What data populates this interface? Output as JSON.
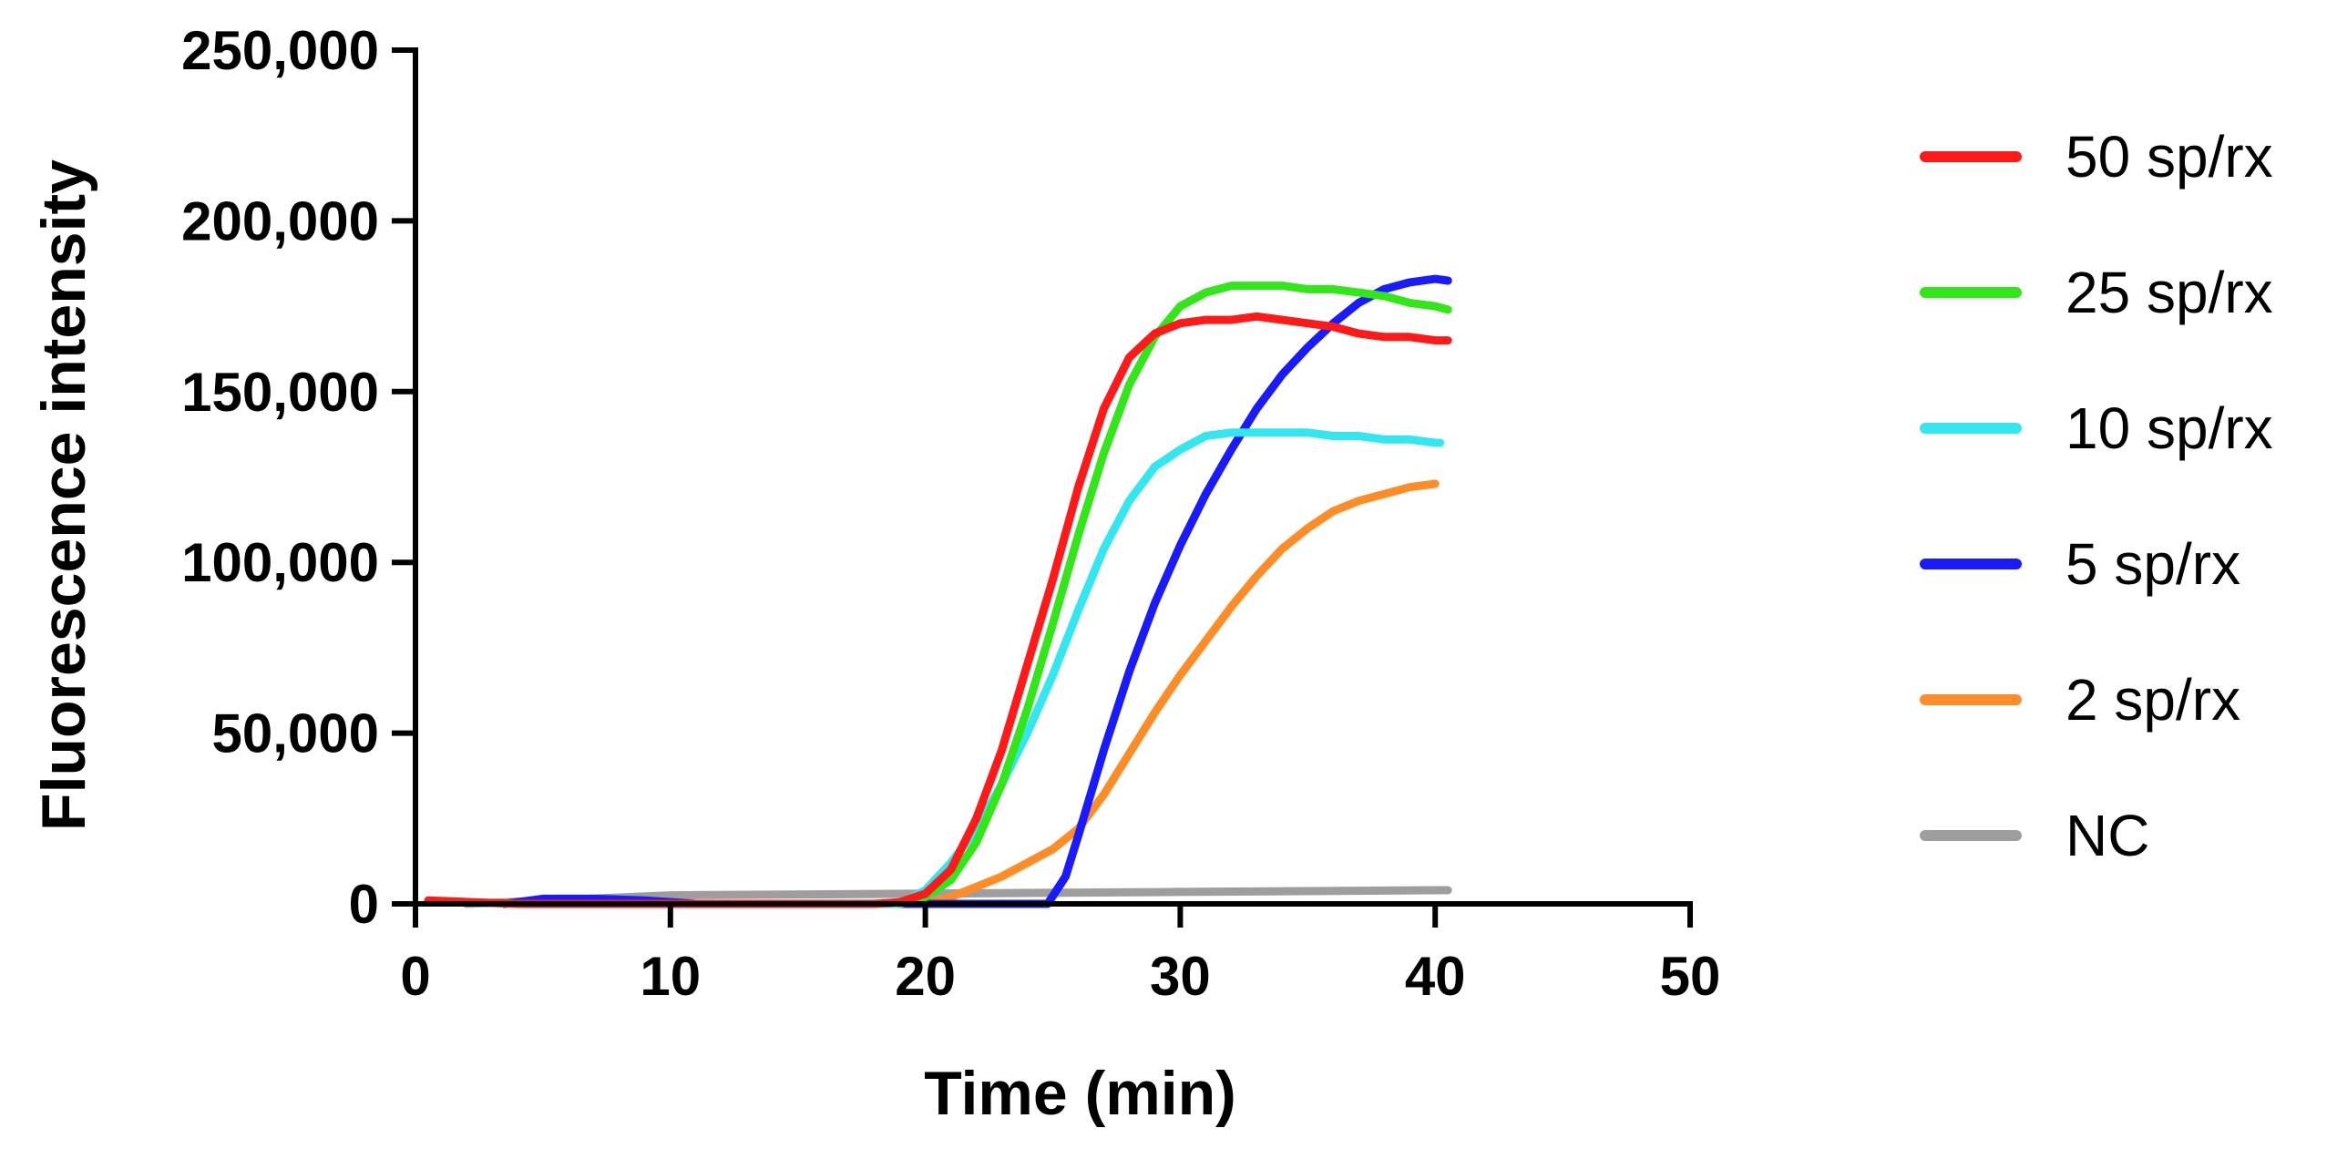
{
  "chart_data": {
    "type": "line",
    "title": "",
    "xlabel": "Time (min)",
    "ylabel": "Fluorescence intensity",
    "xlim": [
      0,
      50
    ],
    "ylim": [
      0,
      250000
    ],
    "xticks": [
      0,
      10,
      20,
      30,
      40,
      50
    ],
    "yticks": [
      0,
      50000,
      100000,
      150000,
      200000,
      250000
    ],
    "xtick_labels": [
      "0",
      "10",
      "20",
      "30",
      "40",
      "50"
    ],
    "ytick_labels": [
      "0",
      "50,000",
      "100,000",
      "150,000",
      "200,000",
      "250,000"
    ],
    "grid": false,
    "legend_position": "right",
    "series": [
      {
        "name": "50 sp/rx",
        "color": "#ff1a1a",
        "x": [
          0.5,
          4,
          8,
          12,
          16,
          18,
          19,
          20,
          21,
          22,
          23,
          24,
          25,
          26,
          27,
          28,
          29,
          30,
          31,
          32,
          33,
          34,
          35,
          36,
          37,
          38,
          39,
          40,
          40.5
        ],
        "y": [
          1000,
          0,
          0,
          0,
          0,
          0,
          500,
          3000,
          10000,
          25000,
          45000,
          70000,
          95000,
          122000,
          145000,
          160000,
          167000,
          170000,
          171000,
          171000,
          172000,
          171000,
          170000,
          169000,
          167000,
          166000,
          166000,
          165000,
          165000
        ]
      },
      {
        "name": "25 sp/rx",
        "color": "#33e61a",
        "x": [
          19,
          20,
          21,
          22,
          23,
          24,
          25,
          26,
          27,
          28,
          29,
          30,
          31,
          32,
          33,
          34,
          35,
          36,
          37,
          38,
          39,
          40,
          40.5
        ],
        "y": [
          0,
          2000,
          7000,
          18000,
          35000,
          57000,
          82000,
          108000,
          132000,
          152000,
          166000,
          175000,
          179000,
          181000,
          181000,
          181000,
          180000,
          180000,
          179000,
          178000,
          176000,
          175000,
          174000
        ]
      },
      {
        "name": "10 sp/rx",
        "color": "#33e6f0",
        "x": [
          18,
          19,
          20,
          21,
          22,
          23,
          24,
          25,
          26,
          27,
          28,
          29,
          30,
          31,
          32,
          33,
          34,
          35,
          36,
          37,
          38,
          39,
          40,
          40.2
        ],
        "y": [
          0,
          0,
          4000,
          12000,
          22000,
          35000,
          50000,
          67000,
          86000,
          104000,
          118000,
          128000,
          133000,
          137000,
          138000,
          138000,
          138000,
          138000,
          137000,
          137000,
          136000,
          136000,
          135000,
          135000
        ]
      },
      {
        "name": "5 sp/rx",
        "color": "#1a1aff",
        "x": [
          3.5,
          5,
          7,
          9,
          11,
          11.5,
          24.8,
          25.5,
          26,
          27,
          28,
          29,
          30,
          31,
          32,
          33,
          34,
          35,
          36,
          37,
          38,
          39,
          40,
          40.5
        ],
        "y": [
          0,
          1500,
          1500,
          1000,
          0,
          0,
          0,
          8000,
          20000,
          45000,
          68000,
          88000,
          105000,
          120000,
          133000,
          145000,
          155000,
          163000,
          170000,
          176000,
          180000,
          182000,
          183000,
          182500
        ]
      },
      {
        "name": "2 sp/rx",
        "color": "#ff8c26",
        "x": [
          20,
          21,
          22,
          23,
          24,
          25,
          26,
          27,
          28,
          29,
          30,
          31,
          32,
          33,
          34,
          35,
          36,
          37,
          38,
          39,
          40
        ],
        "y": [
          0,
          2000,
          5000,
          8000,
          12000,
          16000,
          22000,
          32000,
          44000,
          56000,
          67000,
          77000,
          87000,
          96000,
          104000,
          110000,
          115000,
          118000,
          120000,
          122000,
          123000
        ]
      },
      {
        "name": "NC",
        "color": "#9e9e9e",
        "x": [
          2,
          10,
          20,
          30,
          40,
          40.5
        ],
        "y": [
          0,
          2500,
          3000,
          3500,
          4000,
          4000
        ]
      }
    ]
  }
}
